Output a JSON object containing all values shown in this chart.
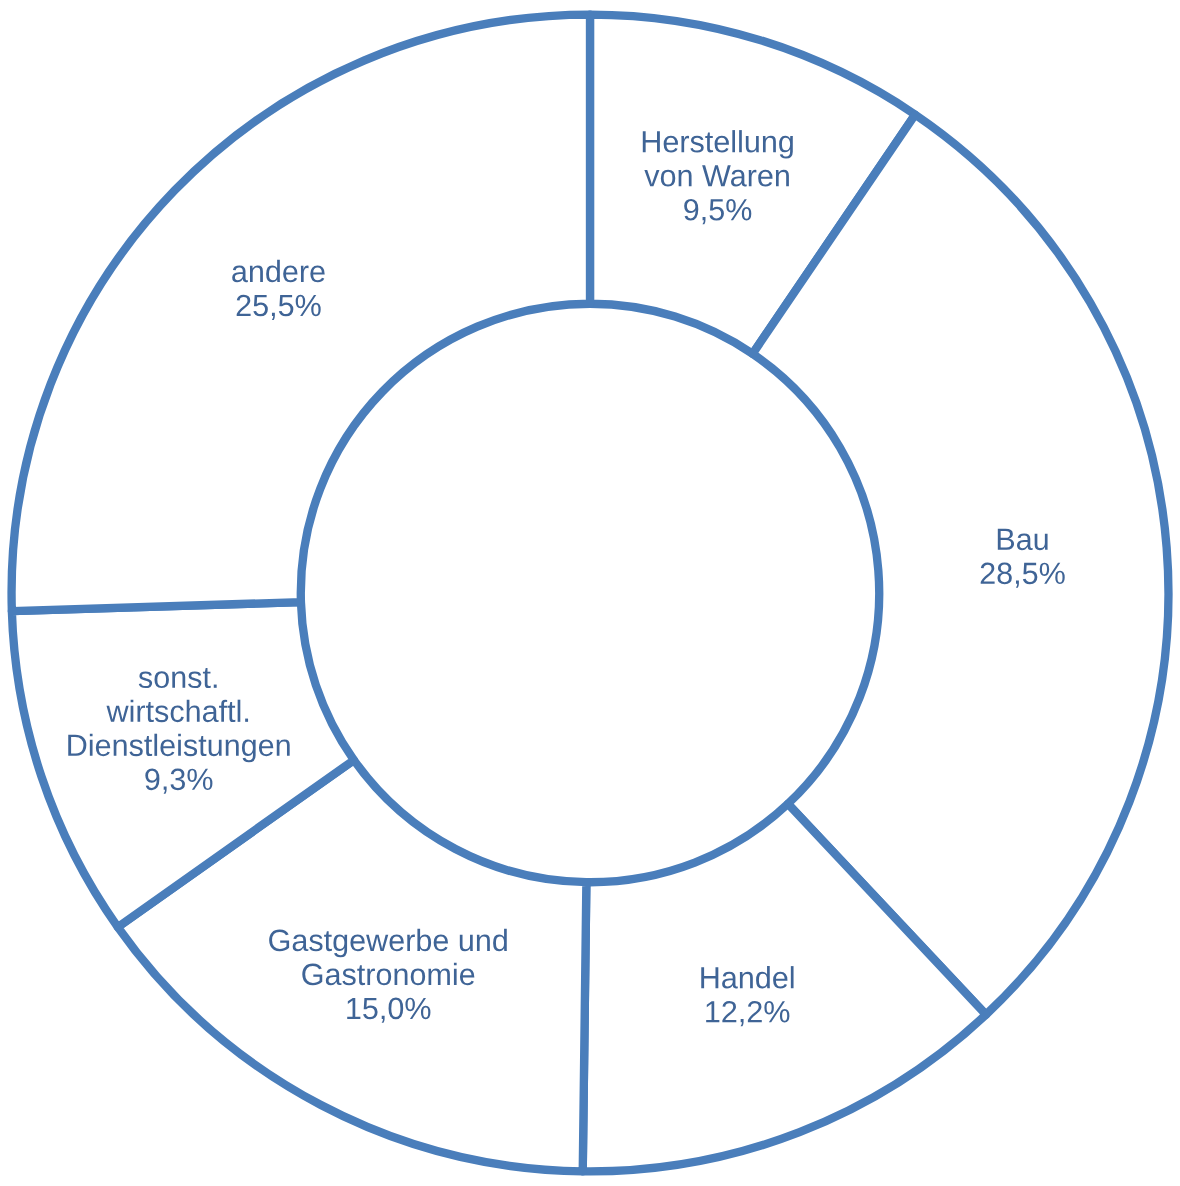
{
  "chart_data": {
    "type": "donut",
    "categories": [
      "Herstellung\nvon Waren",
      "Bau",
      "Handel",
      "Gastgewerbe und\nGastronomie",
      "sonst.\nwirtschaftl.\nDienstleistungen",
      "andere"
    ],
    "values": [
      9.5,
      28.5,
      12.2,
      15.0,
      9.3,
      25.5
    ],
    "value_labels": [
      "9,5%",
      "28,5%",
      "12,2%",
      "15,0%",
      "9,3%",
      "25,5%"
    ],
    "colors": [
      "#ffffff",
      "#ffffff",
      "#ffffff",
      "#ffffff",
      "#ffffff",
      "#ffffff"
    ],
    "data_labels": true
  }
}
